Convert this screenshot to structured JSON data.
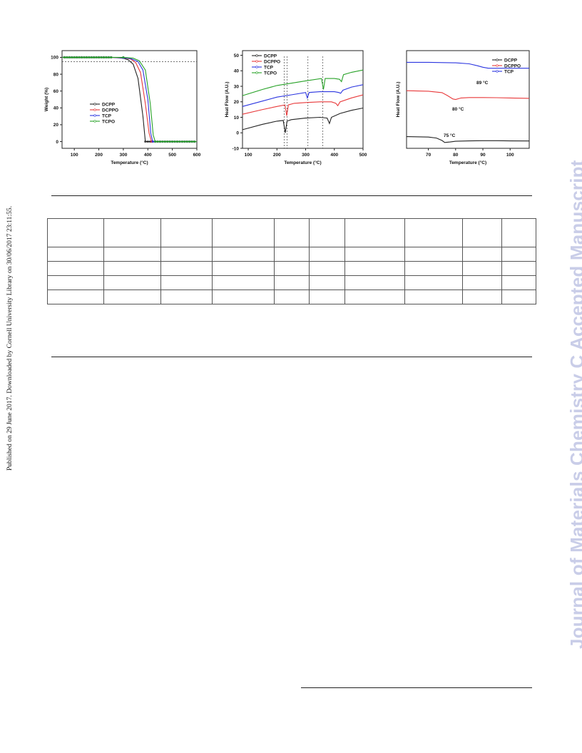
{
  "sidebar_left": "Published on 29 June 2017. Downloaded by Cornell University Library on 30/06/2017 23:11:55.",
  "watermark": "Journal of Materials Chemistry C Accepted Manuscript",
  "colors": {
    "DCPP": "#222222",
    "DCPPO": "#e8393a",
    "TCP": "#2b35e0",
    "TCPO": "#28a228",
    "watermark": "#c9cde8"
  },
  "chart_data": [
    {
      "type": "line",
      "xlabel": "Temperature (°C)",
      "ylabel": "Weight (%)",
      "xlim": [
        50,
        600
      ],
      "ylim": [
        -8,
        108
      ],
      "x_ticks": [
        100,
        200,
        300,
        400,
        500,
        600
      ],
      "y_ticks": [
        0,
        20,
        40,
        60,
        80,
        100
      ],
      "reference_line_y": 95,
      "legend_position": "bottom-left",
      "series": [
        {
          "name": "DCPP",
          "color": "#222222",
          "x": [
            50,
            250,
            300,
            320,
            340,
            360,
            380,
            390,
            400,
            600
          ],
          "y": [
            100,
            100,
            99,
            97,
            92,
            75,
            30,
            0,
            0,
            0
          ]
        },
        {
          "name": "DCPPO",
          "color": "#e8393a",
          "x": [
            50,
            250,
            300,
            330,
            350,
            370,
            390,
            405,
            415,
            600
          ],
          "y": [
            100,
            100,
            99.5,
            98,
            94,
            82,
            45,
            10,
            0,
            0
          ]
        },
        {
          "name": "TCP",
          "color": "#2b35e0",
          "x": [
            50,
            250,
            300,
            330,
            360,
            380,
            400,
            412,
            420,
            600
          ],
          "y": [
            100,
            100,
            99.5,
            98.5,
            95,
            85,
            50,
            10,
            0,
            0
          ]
        },
        {
          "name": "TCPO",
          "color": "#28a228",
          "x": [
            50,
            250,
            300,
            340,
            365,
            390,
            410,
            422,
            430,
            600
          ],
          "y": [
            100,
            100,
            100,
            99,
            96,
            85,
            45,
            8,
            0,
            0
          ]
        }
      ]
    },
    {
      "type": "line",
      "xlabel": "Temperature (°C)",
      "ylabel": "Heat Flow (A.U.)",
      "xlim": [
        80,
        500
      ],
      "ylim": [
        -10,
        53
      ],
      "x_ticks": [
        100,
        200,
        300,
        400,
        500
      ],
      "y_ticks": [
        -10,
        0,
        10,
        20,
        30,
        40,
        50
      ],
      "reference_lines_x": [
        225,
        235,
        308,
        360
      ],
      "legend_position": "top-left",
      "series": [
        {
          "name": "DCPP",
          "color": "#222222",
          "x": [
            80,
            150,
            200,
            222,
            229,
            235,
            250,
            300,
            350,
            375,
            383,
            390,
            420,
            460,
            500
          ],
          "y": [
            2,
            5.5,
            7.5,
            8,
            0,
            7.5,
            8.5,
            9.5,
            10,
            9.5,
            6,
            10,
            12.5,
            14.5,
            16
          ]
        },
        {
          "name": "DCPPO",
          "color": "#e8393a",
          "x": [
            80,
            150,
            200,
            228,
            234,
            240,
            260,
            300,
            350,
            390,
            405,
            412,
            420,
            460,
            500
          ],
          "y": [
            12,
            15,
            17,
            18,
            11,
            18,
            19,
            19.5,
            20,
            20,
            19,
            17.5,
            20,
            22.5,
            24.5
          ]
        },
        {
          "name": "TCP",
          "color": "#2b35e0",
          "x": [
            80,
            150,
            200,
            250,
            300,
            306,
            312,
            350,
            400,
            415,
            422,
            430,
            460,
            500
          ],
          "y": [
            17,
            20.5,
            23,
            24.5,
            26,
            22.5,
            26,
            26.5,
            26.5,
            26,
            25.5,
            27.5,
            29.5,
            31
          ]
        },
        {
          "name": "TCPO",
          "color": "#28a228",
          "x": [
            80,
            150,
            200,
            250,
            300,
            355,
            362,
            368,
            400,
            418,
            425,
            432,
            460,
            500
          ],
          "y": [
            24,
            28,
            30.5,
            32,
            33.5,
            35,
            28,
            35,
            35,
            34.5,
            33,
            37.5,
            39,
            40.5
          ]
        }
      ]
    },
    {
      "type": "line",
      "xlabel": "Temperature (°C)",
      "ylabel": "Heat Flow (A.U.)",
      "xlim": [
        62,
        107
      ],
      "ylim": [
        0,
        100
      ],
      "x_ticks": [
        70,
        80,
        90,
        100
      ],
      "legend_position": "top-right",
      "annotations": [
        "75 °C",
        "80 °C",
        "89 °C"
      ],
      "series": [
        {
          "name": "DCPP",
          "color": "#222222",
          "x": [
            62,
            70,
            73,
            75,
            76,
            78,
            80,
            85,
            90,
            95,
            100,
            107
          ],
          "y": [
            12,
            11.5,
            10.5,
            8,
            6,
            6.5,
            7.2,
            7.6,
            7.8,
            7.8,
            7.6,
            7.5
          ]
        },
        {
          "name": "DCPPO",
          "color": "#e8393a",
          "x": [
            62,
            70,
            75,
            77,
            79,
            80,
            82,
            85,
            90,
            95,
            100,
            107
          ],
          "y": [
            59,
            58.5,
            57,
            54,
            50.5,
            50,
            51.5,
            52,
            52,
            51.8,
            51.5,
            51.2
          ]
        },
        {
          "name": "TCP",
          "color": "#2b35e0",
          "x": [
            62,
            70,
            80,
            85,
            88,
            90,
            92,
            95,
            100,
            107
          ],
          "y": [
            88,
            88,
            87.5,
            86.5,
            84.5,
            83,
            82,
            82,
            82,
            82
          ]
        }
      ]
    }
  ],
  "table": {
    "rows": [
      [
        "",
        "",
        "",
        "",
        "",
        "",
        "",
        "",
        "",
        ""
      ],
      [
        "",
        "",
        "",
        "",
        "",
        "",
        "",
        "",
        "",
        ""
      ],
      [
        "",
        "",
        "",
        "",
        "",
        "",
        "",
        "",
        "",
        ""
      ],
      [
        "",
        "",
        "",
        "",
        "",
        "",
        "",
        "",
        "",
        ""
      ],
      [
        "",
        "",
        "",
        "",
        "",
        "",
        "",
        "",
        "",
        ""
      ]
    ]
  }
}
